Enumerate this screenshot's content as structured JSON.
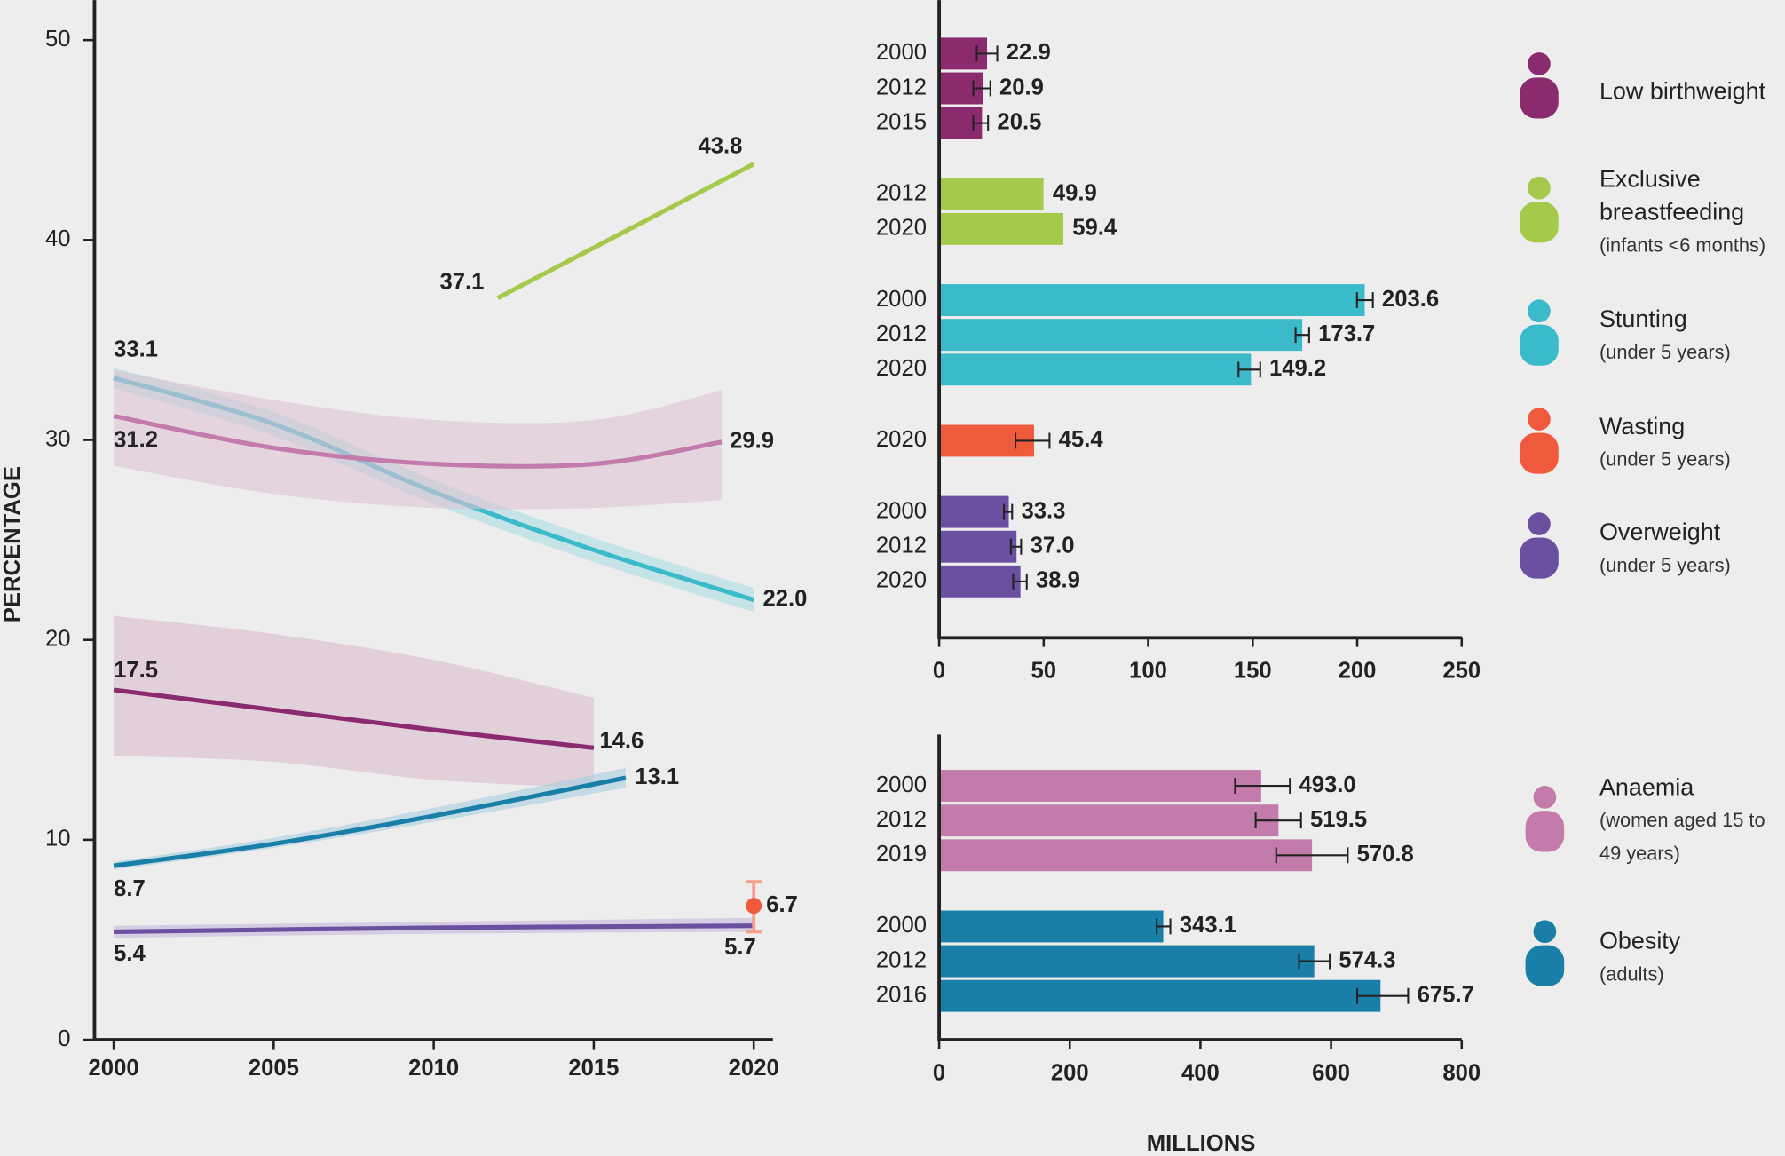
{
  "chart_data": [
    {
      "type": "line",
      "ylabel": "PERCENTAGE",
      "xlim": [
        1999.4,
        2020.6
      ],
      "ylim": [
        0,
        52
      ],
      "xticks": [
        2000,
        2005,
        2010,
        2015,
        2020
      ],
      "yticks": [
        0,
        10,
        20,
        30,
        40,
        50
      ],
      "series": [
        {
          "color": "#8b2a6e",
          "x": [
            2000,
            2005,
            2010,
            2015
          ],
          "values": [
            17.5,
            16.5,
            15.5,
            14.6
          ],
          "band_upper": [
            21.2,
            20.3,
            19.0,
            17.1
          ],
          "band_lower": [
            14.2,
            13.9,
            13.0,
            12.6
          ]
        },
        {
          "color": "#a5c94a",
          "x": [
            2012,
            2020
          ],
          "values": [
            37.1,
            43.8
          ]
        },
        {
          "color": "#3bbac9",
          "x": [
            2000,
            2005,
            2010,
            2015,
            2020
          ],
          "values": [
            33.1,
            30.8,
            27.4,
            24.5,
            22.0
          ],
          "value_labels": [
            "33.1",
            null,
            null,
            null,
            "22.0"
          ],
          "band_upper": [
            33.6,
            31.4,
            28.0,
            25.1,
            22.6
          ],
          "band_lower": [
            32.6,
            30.2,
            26.8,
            23.9,
            21.4
          ]
        },
        {
          "color": "#c27bab",
          "x": [
            2000,
            2005,
            2010,
            2015,
            2019
          ],
          "values": [
            31.2,
            29.6,
            28.8,
            28.8,
            29.9
          ],
          "band_upper": [
            33.5,
            32.0,
            31.0,
            31.0,
            32.5
          ],
          "band_lower": [
            28.7,
            27.3,
            26.6,
            26.6,
            27.0
          ]
        },
        {
          "color": "#1a7fa8",
          "x": [
            2000,
            2005,
            2010,
            2016
          ],
          "values": [
            8.7,
            9.8,
            11.2,
            13.1
          ],
          "band_upper": [
            8.9,
            10.1,
            11.6,
            13.6
          ],
          "band_lower": [
            8.5,
            9.6,
            10.9,
            12.6
          ]
        },
        {
          "color": "#6b4fa0",
          "x": [
            2000,
            2010,
            2020
          ],
          "values": [
            5.4,
            5.6,
            5.7
          ],
          "band_upper": [
            5.7,
            5.9,
            6.1
          ],
          "band_lower": [
            5.1,
            5.3,
            5.4
          ]
        },
        {
          "color": "#ef5a3c",
          "x": [
            2020
          ],
          "values": [
            6.7
          ],
          "error_lower": [
            5.4
          ],
          "error_upper": [
            7.9
          ]
        }
      ]
    },
    {
      "type": "bar",
      "horizontal": true,
      "xlim": [
        0,
        250
      ],
      "xticks": [
        0,
        50,
        100,
        150,
        200,
        250
      ],
      "groups": [
        {
          "name": "Low birthweight",
          "color": "#8b2a6e",
          "categories": [
            "2000",
            "2012",
            "2015"
          ],
          "values": [
            22.9,
            20.9,
            20.5
          ],
          "error_lower": [
            18.0,
            16.3,
            16.3
          ],
          "error_upper": [
            27.8,
            24.5,
            23.4
          ]
        },
        {
          "name": "Exclusive breastfeeding",
          "note": "(infants <6 months)",
          "color": "#a5c94a",
          "categories": [
            "2012",
            "2020"
          ],
          "values": [
            49.9,
            59.4
          ]
        },
        {
          "name": "Stunting",
          "note": "(under 5 years)",
          "color": "#3bbac9",
          "categories": [
            "2000",
            "2012",
            "2020"
          ],
          "values": [
            203.6,
            173.7,
            149.2
          ],
          "error_lower": [
            199.9,
            170.5,
            143.2
          ],
          "error_upper": [
            207.5,
            177.0,
            153.6
          ]
        },
        {
          "name": "Wasting",
          "note": "(under 5 years)",
          "color": "#ef5a3c",
          "categories": [
            "2020"
          ],
          "values": [
            45.4
          ],
          "error_lower": [
            36.5
          ],
          "error_upper": [
            52.8
          ]
        },
        {
          "name": "Overweight",
          "note": "(under 5 years)",
          "color": "#6b4fa0",
          "categories": [
            "2000",
            "2012",
            "2020"
          ],
          "values": [
            33.3,
            37.0,
            38.9
          ],
          "value_labels": [
            "33.3",
            "37.0",
            "38.9"
          ],
          "error_lower": [
            31.0,
            34.3,
            35.4
          ],
          "error_upper": [
            34.9,
            39.2,
            41.9
          ]
        }
      ]
    },
    {
      "type": "bar",
      "horizontal": true,
      "xlabel": "MILLIONS",
      "xlim": [
        0,
        800
      ],
      "xticks": [
        0,
        200,
        400,
        600,
        800
      ],
      "groups": [
        {
          "name": "Anaemia",
          "note": "(women aged 15 to 49 years)",
          "color": "#c27bab",
          "categories": [
            "2000",
            "2012",
            "2019"
          ],
          "values": [
            493.0,
            519.5,
            570.8
          ],
          "value_labels": [
            "493.0",
            "519.5",
            "570.8"
          ],
          "error_lower": [
            453,
            484.5,
            516
          ],
          "error_upper": [
            537,
            554,
            625.5
          ]
        },
        {
          "name": "Obesity",
          "note": "(adults)",
          "color": "#1a7fa8",
          "categories": [
            "2000",
            "2012",
            "2016"
          ],
          "values": [
            343.1,
            574.3,
            675.7
          ],
          "error_lower": [
            333,
            551,
            640
          ],
          "error_upper": [
            354,
            598,
            718
          ]
        }
      ]
    }
  ]
}
